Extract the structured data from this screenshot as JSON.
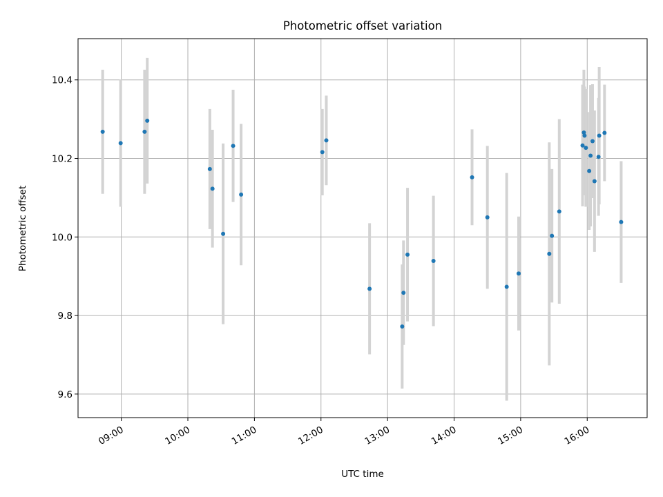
{
  "chart_data": {
    "type": "scatter",
    "title": "Photometric offset variation",
    "xlabel": "UTC time",
    "ylabel": "Photometric offset",
    "xlim": [
      8.35,
      16.9
    ],
    "ylim": [
      9.54,
      10.505
    ],
    "grid": true,
    "x_ticks": [
      {
        "value": 9,
        "label": "09:00"
      },
      {
        "value": 10,
        "label": "10:00"
      },
      {
        "value": 11,
        "label": "11:00"
      },
      {
        "value": 12,
        "label": "12:00"
      },
      {
        "value": 13,
        "label": "13:00"
      },
      {
        "value": 14,
        "label": "14:00"
      },
      {
        "value": 15,
        "label": "15:00"
      },
      {
        "value": 16,
        "label": "16:00"
      }
    ],
    "y_ticks": [
      {
        "value": 9.6,
        "label": "9.6"
      },
      {
        "value": 9.8,
        "label": "9.8"
      },
      {
        "value": 10.0,
        "label": "10.0"
      },
      {
        "value": 10.2,
        "label": "10.2"
      },
      {
        "value": 10.4,
        "label": "10.4"
      }
    ],
    "marker_color": "#1f77b4",
    "errorbar_color": "#d3d3d3",
    "points": [
      {
        "x": 8.72,
        "y": 10.268,
        "yerr": 0.158
      },
      {
        "x": 8.99,
        "y": 10.239,
        "yerr": 0.162
      },
      {
        "x": 9.35,
        "y": 10.268,
        "yerr": 0.158
      },
      {
        "x": 9.39,
        "y": 10.296,
        "yerr": 0.16
      },
      {
        "x": 10.33,
        "y": 10.173,
        "yerr": 0.153
      },
      {
        "x": 10.37,
        "y": 10.123,
        "yerr": 0.15
      },
      {
        "x": 10.53,
        "y": 10.008,
        "yerr": 0.23
      },
      {
        "x": 10.68,
        "y": 10.232,
        "yerr": 0.143
      },
      {
        "x": 10.8,
        "y": 10.108,
        "yerr": 0.18
      },
      {
        "x": 12.02,
        "y": 10.216,
        "yerr": 0.11
      },
      {
        "x": 12.08,
        "y": 10.246,
        "yerr": 0.114
      },
      {
        "x": 12.73,
        "y": 9.868,
        "yerr": 0.167
      },
      {
        "x": 13.22,
        "y": 9.772,
        "yerr": 0.158
      },
      {
        "x": 13.24,
        "y": 9.858,
        "yerr": 0.133
      },
      {
        "x": 13.3,
        "y": 9.955,
        "yerr": 0.17
      },
      {
        "x": 13.69,
        "y": 9.939,
        "yerr": 0.166
      },
      {
        "x": 14.27,
        "y": 10.152,
        "yerr": 0.122
      },
      {
        "x": 14.5,
        "y": 10.05,
        "yerr": 0.182
      },
      {
        "x": 14.79,
        "y": 9.873,
        "yerr": 0.29
      },
      {
        "x": 14.97,
        "y": 9.907,
        "yerr": 0.145
      },
      {
        "x": 15.43,
        "y": 9.957,
        "yerr": 0.284
      },
      {
        "x": 15.47,
        "y": 10.003,
        "yerr": 0.17
      },
      {
        "x": 15.58,
        "y": 10.065,
        "yerr": 0.235
      },
      {
        "x": 15.93,
        "y": 10.233,
        "yerr": 0.155
      },
      {
        "x": 15.95,
        "y": 10.266,
        "yerr": 0.16
      },
      {
        "x": 15.96,
        "y": 10.258,
        "yerr": 0.125
      },
      {
        "x": 15.98,
        "y": 10.227,
        "yerr": 0.15
      },
      {
        "x": 16.03,
        "y": 10.168,
        "yerr": 0.15
      },
      {
        "x": 16.05,
        "y": 10.207,
        "yerr": 0.18
      },
      {
        "x": 16.08,
        "y": 10.244,
        "yerr": 0.145
      },
      {
        "x": 16.11,
        "y": 10.142,
        "yerr": 0.18
      },
      {
        "x": 16.17,
        "y": 10.204,
        "yerr": 0.15
      },
      {
        "x": 16.18,
        "y": 10.258,
        "yerr": 0.175
      },
      {
        "x": 16.26,
        "y": 10.265,
        "yerr": 0.123
      },
      {
        "x": 16.51,
        "y": 10.038,
        "yerr": 0.155
      }
    ]
  }
}
